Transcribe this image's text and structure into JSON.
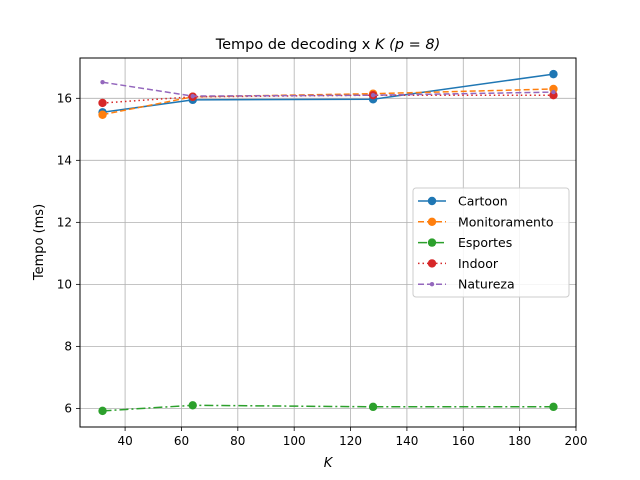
{
  "chart_data": {
    "type": "line",
    "title_prefix": "Tempo de decoding x ",
    "title_k": "K",
    "title_p": " (p = 8)",
    "xlabel": "K",
    "ylabel": "Tempo (ms)",
    "xlim": [
      24.0,
      200
    ],
    "ylim": [
      5.4,
      17.3
    ],
    "xticks": [
      40,
      60,
      80,
      100,
      120,
      140,
      160,
      180,
      200
    ],
    "yticks": [
      6,
      8,
      10,
      12,
      14,
      16
    ],
    "grid": true,
    "legend_position": "right",
    "x": [
      32,
      64,
      128,
      192
    ],
    "series": [
      {
        "name": "Cartoon",
        "values": [
          15.55,
          15.95,
          15.97,
          16.78
        ],
        "color": "#1f77b4",
        "dash": "",
        "marker": "circle"
      },
      {
        "name": "Monitoramento",
        "values": [
          15.47,
          16.05,
          16.15,
          16.3
        ],
        "color": "#ff7f0e",
        "dash": "6,3",
        "marker": "circle"
      },
      {
        "name": "Esportes",
        "values": [
          5.92,
          6.1,
          6.05,
          6.05
        ],
        "color": "#2ca02c",
        "dash": "9,3,2,3",
        "marker": "circle"
      },
      {
        "name": "Indoor",
        "values": [
          15.85,
          16.05,
          16.1,
          16.1
        ],
        "color": "#d62728",
        "dash": "1.5,3",
        "marker": "circle"
      },
      {
        "name": "Natureza",
        "values": [
          16.52,
          16.07,
          16.1,
          16.2
        ],
        "color": "#9467bd",
        "dash": "6,3",
        "marker": "small-circle"
      }
    ]
  }
}
